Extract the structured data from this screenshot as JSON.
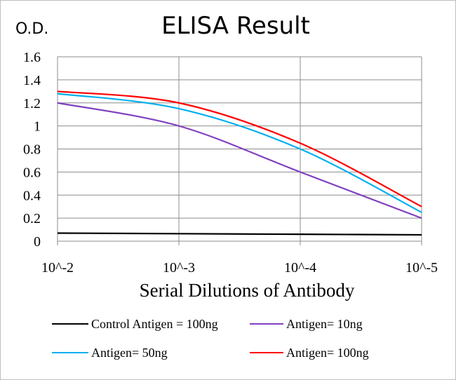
{
  "chart_data": {
    "type": "line",
    "title": "ELISA Result",
    "ylabel": "O.D.",
    "xlabel": "Serial  Dilutions  of Antibody",
    "categories": [
      "10^-2",
      "10^-3",
      "10^-4",
      "10^-5"
    ],
    "x": [
      0.01,
      0.001,
      0.0001,
      1e-05
    ],
    "x_scale": "log",
    "ylim": [
      0,
      1.6
    ],
    "yticks": [
      "0",
      "0.2",
      "0.4",
      "0.6",
      "0.8",
      "1",
      "1.2",
      "1.4",
      "1.6"
    ],
    "grid": true,
    "legend_position": "bottom",
    "series": [
      {
        "name": "Control Antigen = 100ng",
        "color": "#000000",
        "values": [
          0.07,
          0.065,
          0.06,
          0.055
        ]
      },
      {
        "name": "Antigen= 10ng",
        "color": "#8040c0",
        "values": [
          1.2,
          1.0,
          0.6,
          0.2
        ]
      },
      {
        "name": "Antigen= 50ng",
        "color": "#00b0f0",
        "values": [
          1.28,
          1.15,
          0.8,
          0.25
        ]
      },
      {
        "name": "Antigen= 100ng",
        "color": "#ff0000",
        "values": [
          1.3,
          1.2,
          0.85,
          0.3
        ]
      }
    ]
  }
}
